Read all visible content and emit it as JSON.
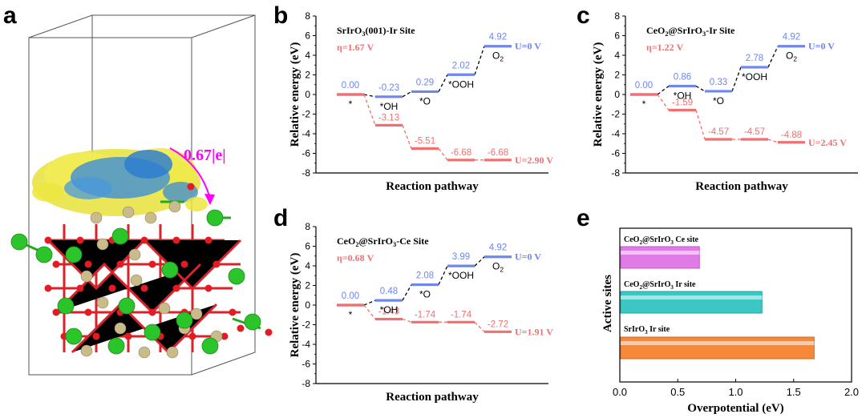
{
  "panel_letters": [
    "a",
    "b",
    "c",
    "d",
    "e"
  ],
  "panel_a": {
    "charge_transfer_label": "0.67|e|"
  },
  "chart_data": [
    {
      "panel": "b",
      "type": "line",
      "title": "SrIrO3(001)-Ir Site",
      "title_parts": [
        "SrIrO",
        "3",
        "(001)-Ir Site"
      ],
      "annotation": "η=1.67 V",
      "xlabel": "Reaction pathway",
      "ylabel": "Relative energy (eV)",
      "ylim": [
        -8,
        8
      ],
      "yticks": [
        8,
        6,
        4,
        2,
        0,
        -2,
        -4,
        -6,
        -8
      ],
      "intermediates": [
        "*",
        "*OH",
        "*O",
        "*OOH",
        "O2"
      ],
      "series": [
        {
          "name": "U=0 V",
          "values": [
            0.0,
            -0.23,
            0.29,
            2.02,
            4.92
          ],
          "labels": [
            "0.00",
            "-0.23",
            "0.29",
            "2.02",
            "4.92"
          ],
          "color": "#6f86ec"
        },
        {
          "name": "U=2.90 V",
          "values": [
            0.0,
            -3.13,
            -5.51,
            -6.68,
            -6.68
          ],
          "labels": [
            "",
            "-3.13",
            "-5.51",
            "-6.68",
            "-6.68"
          ],
          "color": "#f07070"
        }
      ]
    },
    {
      "panel": "c",
      "type": "line",
      "title": "CeO2@SrIrO3-Ir Site",
      "title_parts": [
        "CeO",
        "2",
        "@SrIrO",
        "3",
        "-Ir Site"
      ],
      "annotation": "η=1.22 V",
      "xlabel": "Reaction pathway",
      "ylabel": "Relative energy (eV)",
      "ylim": [
        -8,
        8
      ],
      "yticks": [
        8,
        6,
        4,
        2,
        0,
        -2,
        -4,
        -6,
        -8
      ],
      "intermediates": [
        "*",
        "*OH",
        "*O",
        "*OOH",
        "O2"
      ],
      "series": [
        {
          "name": "U=0 V",
          "values": [
            0.0,
            0.86,
            0.33,
            2.78,
            4.92
          ],
          "labels": [
            "0.00",
            "0.86",
            "0.33",
            "2.78",
            "4.92"
          ],
          "color": "#6f86ec"
        },
        {
          "name": "U=2.45 V",
          "values": [
            0.0,
            -1.59,
            -4.57,
            -4.57,
            -4.88
          ],
          "labels": [
            "",
            "-1.59",
            "-4.57",
            "-4.57",
            "-4.88"
          ],
          "color": "#f07070"
        }
      ]
    },
    {
      "panel": "d",
      "type": "line",
      "title": "CeO2@SrIrO3-Ce Site",
      "title_parts": [
        "CeO",
        "2",
        "@SrIrO",
        "3",
        "-Ce Site"
      ],
      "annotation": "η=0.68 V",
      "xlabel": "Reaction pathway",
      "ylabel": "Relative energy (eV)",
      "ylim": [
        -8,
        8
      ],
      "yticks": [
        8,
        6,
        4,
        2,
        0,
        -2,
        -4,
        -6,
        -8
      ],
      "intermediates": [
        "*",
        "*OH",
        "*O",
        "*OOH",
        "O2"
      ],
      "series": [
        {
          "name": "U=0 V",
          "values": [
            0.0,
            0.48,
            2.08,
            3.99,
            4.92
          ],
          "labels": [
            "0.00",
            "0.48",
            "2.08",
            "3.99",
            "4.92"
          ],
          "color": "#6f86ec"
        },
        {
          "name": "U=1.91 V",
          "values": [
            0.0,
            -1.43,
            -1.74,
            -1.74,
            -2.72
          ],
          "labels": [
            "",
            "-1.43",
            "-1.74",
            "-1.74",
            "-2.72"
          ],
          "color": "#f07070"
        }
      ]
    },
    {
      "panel": "e",
      "type": "bar",
      "orientation": "horizontal",
      "xlabel": "Overpotential (eV)",
      "ylabel": "Active sites",
      "xlim": [
        0.0,
        2.0
      ],
      "xticks": [
        "0.0",
        "0.5",
        "1.0",
        "1.5",
        "2.0"
      ],
      "categories": [
        "CeO2@SrIrO3 Ce site",
        "CeO2@SrIrO3 Ir site",
        "SrIrO3 Ir site"
      ],
      "category_parts": [
        [
          "CeO",
          "2",
          "@SrIrO",
          "3",
          " Ce site"
        ],
        [
          "CeO",
          "2",
          "@SrIrO",
          "3",
          " Ir site"
        ],
        [
          "SrIrO",
          "3",
          " Ir site"
        ]
      ],
      "values": [
        0.68,
        1.22,
        1.67
      ],
      "colors": [
        "#e07be6",
        "#3cc6c4",
        "#f7883a"
      ]
    }
  ]
}
